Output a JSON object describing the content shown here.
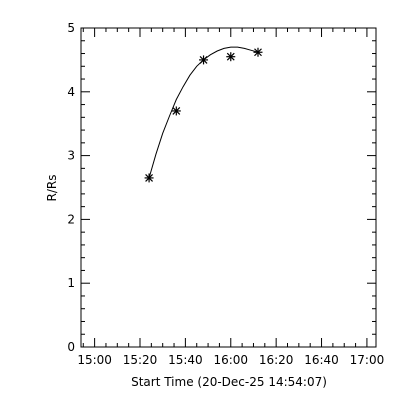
{
  "chart_data": {
    "type": "scatter",
    "title": "",
    "xlabel": "Start Time (20-Dec-25 14:54:07)",
    "ylabel": "R/Rs",
    "x_tick_labels": [
      "15:00",
      "15:20",
      "15:40",
      "16:00",
      "16:20",
      "16:40",
      "17:00"
    ],
    "x_ticks": [
      "15:00",
      "15:20",
      "15:40",
      "16:00",
      "16:20",
      "16:40",
      "17:00"
    ],
    "xlim": [
      "14:54",
      "17:04"
    ],
    "y_tick_labels": [
      "0",
      "1",
      "2",
      "3",
      "4",
      "5"
    ],
    "y_ticks": [
      0,
      1,
      2,
      3,
      4,
      5
    ],
    "ylim": [
      0,
      5
    ],
    "grid": false,
    "points": {
      "marker": "asterisk",
      "x": [
        "15:24",
        "15:36",
        "15:48",
        "16:00",
        "16:12"
      ],
      "y": [
        2.65,
        3.7,
        4.5,
        4.55,
        4.62
      ]
    },
    "fit_curve": {
      "style": "line",
      "x": [
        "15:24",
        "15:27",
        "15:30",
        "15:33",
        "15:36",
        "15:39",
        "15:42",
        "15:45",
        "15:48",
        "15:51",
        "15:54",
        "15:57",
        "16:00",
        "16:03",
        "16:06",
        "16:09",
        "16:12"
      ],
      "y": [
        2.65,
        3.02,
        3.35,
        3.62,
        3.88,
        4.08,
        4.26,
        4.4,
        4.5,
        4.58,
        4.64,
        4.68,
        4.7,
        4.7,
        4.68,
        4.65,
        4.62
      ]
    }
  }
}
